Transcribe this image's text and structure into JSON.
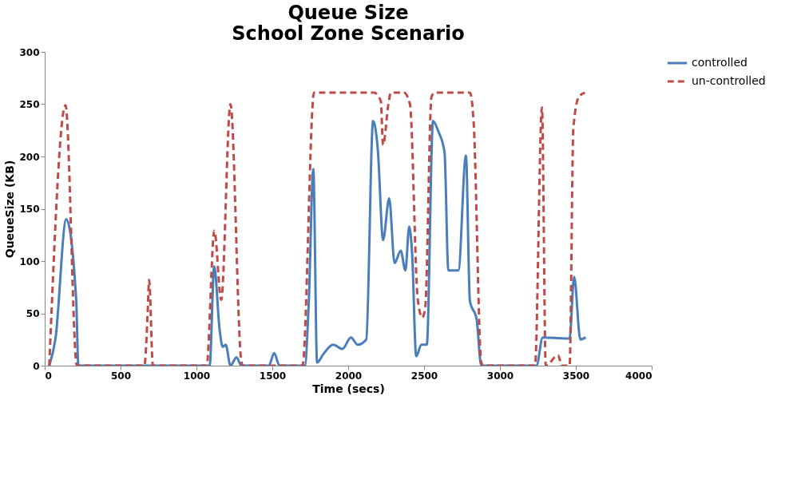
{
  "chart_data": {
    "type": "line",
    "title": [
      "Queue Size",
      "School Zone Scenario"
    ],
    "xlabel": "Time (secs)",
    "ylabel": "QueueSize (KB)",
    "xlim": [
      0,
      4000
    ],
    "xticks": [
      0,
      500,
      1000,
      1500,
      2000,
      2500,
      3000,
      3500,
      4000
    ],
    "ylim": [
      0,
      300
    ],
    "yticks": [
      0,
      50,
      100,
      150,
      200,
      250,
      300
    ],
    "grid": false,
    "legend": "right",
    "marker": "none",
    "series": [
      {
        "name": "controlled",
        "color": "#4a7ebb",
        "line_style": "solid",
        "x": [
          30,
          71,
          142,
          207,
          222,
          1087,
          1117,
          1153,
          1173,
          1193,
          1224,
          1264,
          1295,
          1477,
          1512,
          1547,
          1714,
          1740,
          1770,
          1795,
          1836,
          1901,
          1962,
          2018,
          2063,
          2119,
          2164,
          2195,
          2230,
          2270,
          2306,
          2346,
          2377,
          2402,
          2422,
          2448,
          2483,
          2518,
          2559,
          2594,
          2635,
          2660,
          2726,
          2776,
          2802,
          2847,
          2872,
          2880,
          3241,
          3282,
          3434,
          3459,
          3489,
          3530,
          3565
        ],
        "values": [
          0,
          26,
          140,
          64,
          0,
          0,
          95,
          34,
          18,
          20,
          0,
          8,
          0,
          0,
          12,
          0,
          0,
          60,
          188,
          3,
          11,
          20,
          16,
          27,
          20,
          25,
          234,
          207,
          120,
          160,
          98,
          110,
          91,
          133,
          105,
          9,
          20,
          20,
          234,
          224,
          204,
          91,
          91,
          201,
          62,
          44,
          3,
          0,
          0,
          27,
          26,
          26,
          85,
          25,
          27
        ]
      },
      {
        "name": "un-controlled",
        "color": "#be4b48",
        "line_style": "dashed",
        "x": [
          30,
          137,
          212,
          657,
          678,
          688,
          713,
          1067,
          1118,
          1163,
          1224,
          1295,
          1305,
          1699,
          1775,
          2169,
          2215,
          2230,
          2265,
          2281,
          2367,
          2407,
          2458,
          2488,
          2508,
          2549,
          2569,
          2802,
          2827,
          2877,
          2890,
          3231,
          3277,
          3302,
          3383,
          3408,
          3459,
          3484,
          3520,
          3560
        ],
        "values": [
          0,
          249,
          0,
          0,
          49,
          82,
          0,
          0,
          129,
          63,
          250,
          5,
          0,
          0,
          261,
          261,
          253,
          211,
          250,
          261,
          261,
          250,
          64,
          46,
          56,
          257,
          261,
          261,
          232,
          3,
          0,
          0,
          247,
          0,
          10,
          0,
          0,
          227,
          257,
          261
        ]
      }
    ]
  }
}
